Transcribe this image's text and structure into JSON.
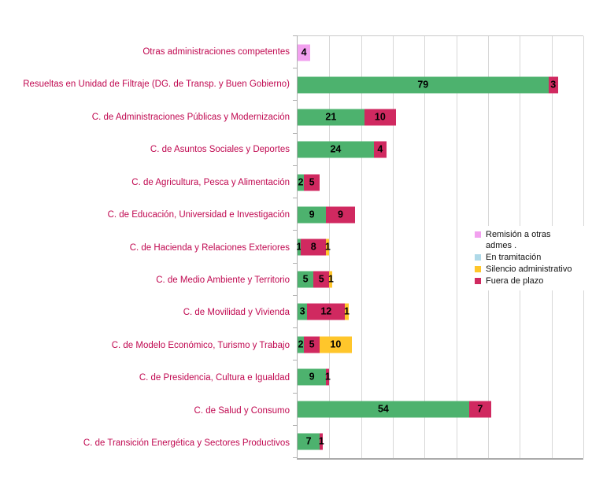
{
  "chart_data": {
    "type": "bar",
    "orientation": "horizontal",
    "stacked": true,
    "title": "",
    "xlabel": "",
    "ylabel": "",
    "x_axis": {
      "min": 0,
      "max": 90,
      "gridline_step": 10,
      "tick_labels_visible": false
    },
    "grid": "vertical-gridlines-on",
    "colors": {
      "remision": "#F2A1EF",
      "en_tramitacion": "#AFD9E8",
      "silencio": "#FFC62B",
      "fuera": "#D02960",
      "green": "#4DB26E",
      "category_label": "#C00850",
      "value_label": "#000000",
      "gridline": "#D7D7D7"
    },
    "categories": [
      "Otras administraciones competentes",
      "Resueltas en Unidad de Filtraje (DG. de  Transp. y Buen Gobierno)",
      "C. de Administraciones Públicas y Modernización",
      "C. de Asuntos Sociales y Deportes",
      "C. de Agricultura, Pesca y Alimentación",
      "C. de Educación, Universidad e Investigación",
      "C. de Hacienda y Relaciones Exteriores",
      "C. de Medio Ambiente y Territorio",
      "C. de Movilidad y Vivienda",
      "C. de Modelo Económico, Turismo y Trabajo",
      "C. de Presidencia, Cultura e Igualdad",
      "C. de Salud y Consumo",
      "C. de Transición Energética y Sectores Productivos"
    ],
    "rows": [
      {
        "category": "Otras administraciones competentes",
        "segments": [
          {
            "series": "remision",
            "value": 4
          }
        ]
      },
      {
        "category": "Resueltas en Unidad de Filtraje (DG. de  Transp. y Buen Gobierno)",
        "segments": [
          {
            "series": "green",
            "value": 79
          },
          {
            "series": "fuera",
            "value": 3
          }
        ]
      },
      {
        "category": "C. de Administraciones Públicas y Modernización",
        "segments": [
          {
            "series": "green",
            "value": 21
          },
          {
            "series": "fuera",
            "value": 10
          }
        ]
      },
      {
        "category": "C. de Asuntos Sociales y Deportes",
        "segments": [
          {
            "series": "green",
            "value": 24
          },
          {
            "series": "fuera",
            "value": 4
          }
        ]
      },
      {
        "category": "C. de Agricultura, Pesca y Alimentación",
        "segments": [
          {
            "series": "green",
            "value": 2
          },
          {
            "series": "fuera",
            "value": 5
          }
        ]
      },
      {
        "category": "C. de Educación, Universidad e Investigación",
        "segments": [
          {
            "series": "green",
            "value": 9
          },
          {
            "series": "fuera",
            "value": 9
          }
        ]
      },
      {
        "category": "C. de Hacienda y Relaciones Exteriores",
        "segments": [
          {
            "series": "green",
            "value": 1
          },
          {
            "series": "fuera",
            "value": 8
          },
          {
            "series": "silencio",
            "value": 1
          }
        ]
      },
      {
        "category": "C. de Medio Ambiente y Territorio",
        "segments": [
          {
            "series": "green",
            "value": 5
          },
          {
            "series": "fuera",
            "value": 5
          },
          {
            "series": "silencio",
            "value": 1
          }
        ]
      },
      {
        "category": "C. de Movilidad y Vivienda",
        "segments": [
          {
            "series": "green",
            "value": 3
          },
          {
            "series": "fuera",
            "value": 12
          },
          {
            "series": "silencio",
            "value": 1
          }
        ]
      },
      {
        "category": "C. de Modelo Económico, Turismo y Trabajo",
        "segments": [
          {
            "series": "green",
            "value": 2
          },
          {
            "series": "fuera",
            "value": 5
          },
          {
            "series": "silencio",
            "value": 10
          }
        ]
      },
      {
        "category": "C. de Presidencia, Cultura e Igualdad",
        "segments": [
          {
            "series": "green",
            "value": 9
          },
          {
            "series": "fuera",
            "value": 1
          }
        ]
      },
      {
        "category": "C. de Salud y Consumo",
        "segments": [
          {
            "series": "green",
            "value": 54
          },
          {
            "series": "fuera",
            "value": 7
          }
        ]
      },
      {
        "category": "C. de Transición Energética y Sectores Productivos",
        "segments": [
          {
            "series": "green",
            "value": 7
          },
          {
            "series": "fuera",
            "value": 1
          }
        ]
      }
    ],
    "legend": {
      "position": "middle-right",
      "items": [
        {
          "label": "Remisión a otras admes .",
          "series": "remision"
        },
        {
          "label": "En tramitación",
          "series": "en_tramitacion"
        },
        {
          "label": "Silencio administrativo",
          "series": "silencio"
        },
        {
          "label": "Fuera de plazo",
          "series": "fuera"
        }
      ]
    }
  }
}
